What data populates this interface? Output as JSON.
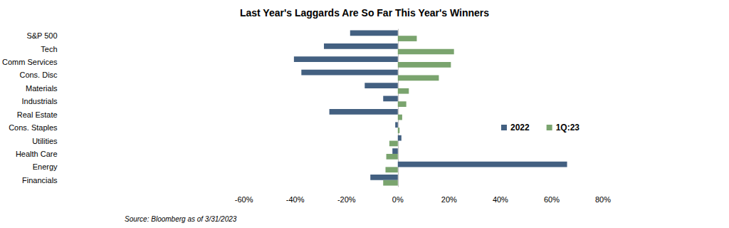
{
  "chart_data": {
    "type": "bar",
    "orientation": "horizontal",
    "title": "Last Year's Laggards Are So Far This Year's Winners",
    "annotation": "Source: Bloomberg as of 3/31/2023",
    "categories": [
      "S&P 500",
      "Tech",
      "Comm Services",
      "Cons. Disc",
      "Materials",
      "Industrials",
      "Real Estate",
      "Cons. Staples",
      "Utilities",
      "Health Care",
      "Energy",
      "Financials"
    ],
    "series": [
      {
        "name": "2022",
        "color": "#436081",
        "values": [
          -18.6,
          -28.8,
          -40.5,
          -37.6,
          -12.9,
          -5.7,
          -26.7,
          -1.0,
          1.4,
          -2.1,
          66.0,
          -10.7
        ]
      },
      {
        "name": "1Q:23",
        "color": "#7aa46e",
        "values": [
          7.4,
          21.9,
          20.7,
          16.0,
          4.3,
          3.3,
          1.7,
          0.7,
          -3.3,
          -4.5,
          -4.8,
          -5.7
        ]
      }
    ],
    "xlim": [
      -60,
      80
    ],
    "xticks": [
      {
        "value": -60,
        "label": "-60%"
      },
      {
        "value": -40,
        "label": "-40%"
      },
      {
        "value": -20,
        "label": "-20%"
      },
      {
        "value": 0,
        "label": "0%"
      },
      {
        "value": 20,
        "label": "20%"
      },
      {
        "value": 40,
        "label": "40%"
      },
      {
        "value": 60,
        "label": "60%"
      },
      {
        "value": 80,
        "label": "80%"
      }
    ],
    "grid": false,
    "legend": "right"
  }
}
